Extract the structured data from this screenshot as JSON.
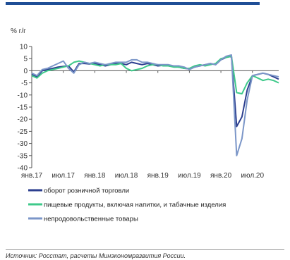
{
  "chart_data": {
    "type": "line",
    "unit_label": "% г/г",
    "ylim": [
      -40,
      10
    ],
    "y_ticks": [
      10,
      5,
      0,
      -5,
      -10,
      -15,
      -20,
      -25,
      -30,
      -35,
      -40
    ],
    "x_tick_labels": [
      "янв.17",
      "июл.17",
      "янв.18",
      "июл.18",
      "янв.19",
      "июл.19",
      "янв.20",
      "июл.20"
    ],
    "x_start": "2017-01",
    "x_end": "2020-12",
    "grid": false,
    "legend_position": "bottom",
    "series": [
      {
        "name": "оборот розничной торговли",
        "color": "#2c3f8f",
        "values": [
          -1.5,
          -2.5,
          0.0,
          0.5,
          1.0,
          1.5,
          1.8,
          2.0,
          -0.5,
          3.0,
          3.0,
          2.8,
          3.0,
          2.5,
          2.0,
          2.5,
          3.0,
          3.0,
          2.5,
          3.5,
          3.0,
          2.5,
          3.0,
          2.5,
          2.0,
          2.2,
          2.0,
          1.8,
          1.5,
          1.0,
          0.8,
          1.5,
          2.0,
          2.5,
          3.0,
          2.5,
          4.5,
          5.5,
          6.0,
          -23.0,
          -19.0,
          -8.0,
          -2.0,
          -1.5,
          -1.0,
          -1.5,
          -2.5,
          -3.5
        ]
      },
      {
        "name": "пищевые продукты, включая напитки, и табачные изделия",
        "color": "#3ec98a",
        "values": [
          -2.0,
          -3.0,
          -1.0,
          0.0,
          0.5,
          1.0,
          1.5,
          2.0,
          3.5,
          4.0,
          3.5,
          3.0,
          2.5,
          2.0,
          2.5,
          2.5,
          2.5,
          3.0,
          1.0,
          0.0,
          0.5,
          1.0,
          2.0,
          2.5,
          2.5,
          2.0,
          2.0,
          1.5,
          1.5,
          1.0,
          1.0,
          2.0,
          2.5,
          2.0,
          2.5,
          3.0,
          5.0,
          5.5,
          6.0,
          -9.0,
          -9.5,
          -5.0,
          -2.0,
          -3.0,
          -4.0,
          -3.5,
          -4.0,
          -5.0
        ]
      },
      {
        "name": "непродовольственные товары",
        "color": "#7b96c8",
        "values": [
          -1.0,
          -2.0,
          0.5,
          1.0,
          2.0,
          3.0,
          4.0,
          1.0,
          -1.0,
          2.5,
          3.5,
          3.0,
          3.5,
          3.0,
          2.5,
          3.0,
          3.5,
          3.5,
          3.5,
          4.5,
          4.5,
          3.5,
          3.5,
          3.0,
          2.5,
          2.5,
          2.5,
          2.0,
          2.0,
          1.5,
          0.5,
          1.5,
          2.0,
          2.5,
          3.0,
          2.5,
          4.5,
          6.0,
          6.5,
          -35.0,
          -28.0,
          -12.0,
          -2.0,
          -1.5,
          -1.0,
          -1.5,
          -2.0,
          -2.5
        ]
      }
    ]
  },
  "source_note": "Источник: Росстат, расчеты Минэкономразвития России."
}
